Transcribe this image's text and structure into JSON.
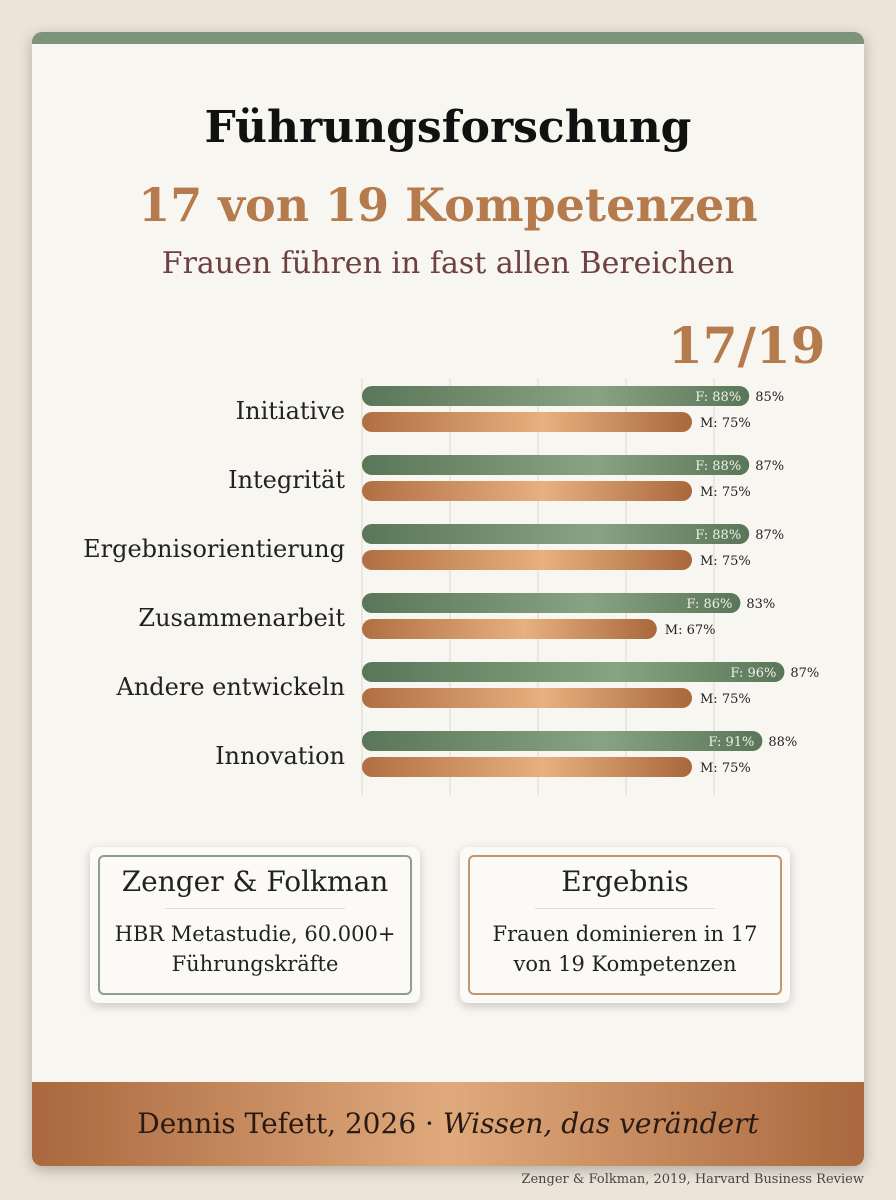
{
  "title": "Führungsforschung",
  "subtitle": "17 von 19 Kompetenzen",
  "tagline": "Frauen führen in fast allen Bereichen",
  "score": "17/19",
  "chart_data": {
    "type": "bar",
    "categories": [
      "Initiative",
      "Integrität",
      "Ergebnisorientierung",
      "Zusammenarbeit",
      "Andere entwickeln",
      "Innovation"
    ],
    "series": [
      {
        "name": "F",
        "values": [
          88,
          88,
          88,
          86,
          96,
          91
        ],
        "labels": [
          "F: 88%",
          "F: 88%",
          "F: 88%",
          "F: 86%",
          "F: 96%",
          "F: 91%"
        ]
      },
      {
        "name": "M",
        "values": [
          75,
          75,
          75,
          67,
          75,
          75
        ],
        "labels": [
          "M: 75%",
          "M: 75%",
          "M: 75%",
          "M: 67%",
          "M: 75%",
          "M: 75%"
        ]
      }
    ],
    "outside_labels": [
      "85%",
      "87%",
      "87%",
      "83%",
      "87%",
      "88%"
    ],
    "xlim": [
      0,
      100
    ],
    "grid": true,
    "colors": {
      "F": "#6f8d6c",
      "M": "#c4875a"
    }
  },
  "cards": [
    {
      "title": "Zenger & Folkman",
      "text1": "HBR Metastudie, 60.000+",
      "text2": "Führungskräfte",
      "border": "#8da18a"
    },
    {
      "title": "Ergebnis",
      "text1": "Frauen dominieren in 17",
      "text2": "von 19 Kompetenzen",
      "border": "#c4966d"
    }
  ],
  "footer": {
    "author": "Dennis Tefett, 2026 · ",
    "motto": "Wissen, das verändert"
  },
  "source": "Zenger & Folkman, 2019, Harvard Business Review"
}
